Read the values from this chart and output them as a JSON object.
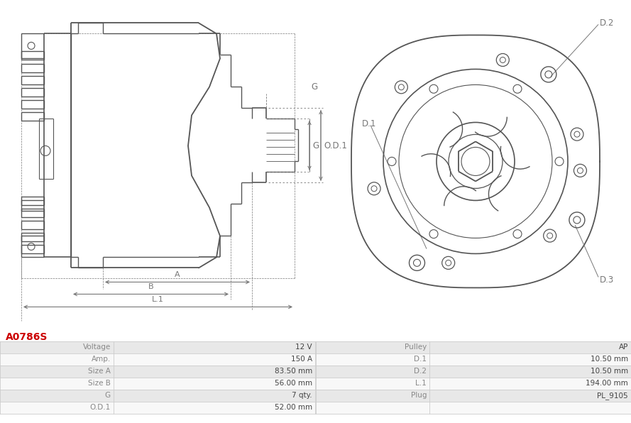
{
  "title": "A0786S",
  "title_color": "#cc0000",
  "bg_color": "#ffffff",
  "table_data": {
    "left": [
      [
        "Voltage",
        "12 V"
      ],
      [
        "Amp.",
        "150 A"
      ],
      [
        "Size A",
        "83.50 mm"
      ],
      [
        "Size B",
        "56.00 mm"
      ],
      [
        "G",
        "7 qty."
      ],
      [
        "O.D.1",
        "52.00 mm"
      ]
    ],
    "right": [
      [
        "Pulley",
        "AP"
      ],
      [
        "D.1",
        "10.50 mm"
      ],
      [
        "D.2",
        "10.50 mm"
      ],
      [
        "L.1",
        "194.00 mm"
      ],
      [
        "Plug",
        "PL_9105"
      ],
      [
        "",
        ""
      ]
    ]
  },
  "row_colors": [
    "#e8e8e8",
    "#f8f8f8"
  ],
  "label_color": "#888888",
  "value_color": "#444444",
  "line_color": "#cccccc",
  "drawing_color": "#555555",
  "dim_color": "#777777"
}
